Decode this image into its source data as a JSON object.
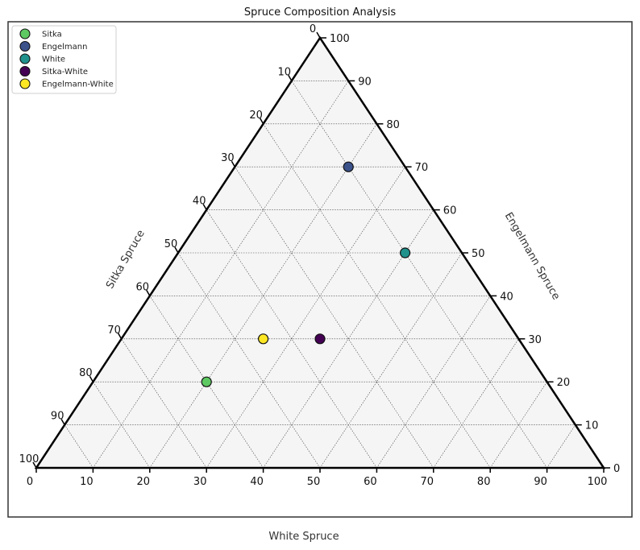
{
  "chart_data": {
    "type": "scatter",
    "subtype": "ternary",
    "title": "Spruce Composition Analysis",
    "axes": {
      "bottom": {
        "label": "White Spruce",
        "ticks": [
          0,
          10,
          20,
          30,
          40,
          50,
          60,
          70,
          80,
          90,
          100
        ]
      },
      "left": {
        "label": "Sitka Spruce",
        "ticks": [
          0,
          10,
          20,
          30,
          40,
          50,
          60,
          70,
          80,
          90,
          100
        ]
      },
      "right": {
        "label": "Engelmann Spruce",
        "ticks": [
          0,
          10,
          20,
          30,
          40,
          50,
          60,
          70,
          80,
          90,
          100
        ]
      }
    },
    "grid": true,
    "legend_position": "top-left",
    "series": [
      {
        "name": "Sitka",
        "white": 20,
        "engelmann": 20,
        "sitka": 60,
        "color": "#5ec962"
      },
      {
        "name": "Engelmann",
        "white": 20,
        "engelmann": 70,
        "sitka": 10,
        "color": "#3b528b"
      },
      {
        "name": "White",
        "white": 40,
        "engelmann": 50,
        "sitka": 10,
        "color": "#21918c"
      },
      {
        "name": "Sitka-White",
        "white": 35,
        "engelmann": 30,
        "sitka": 35,
        "color": "#440154"
      },
      {
        "name": "Engelmann-White",
        "white": 25,
        "engelmann": 30,
        "sitka": 45,
        "color": "#fde725"
      }
    ]
  }
}
